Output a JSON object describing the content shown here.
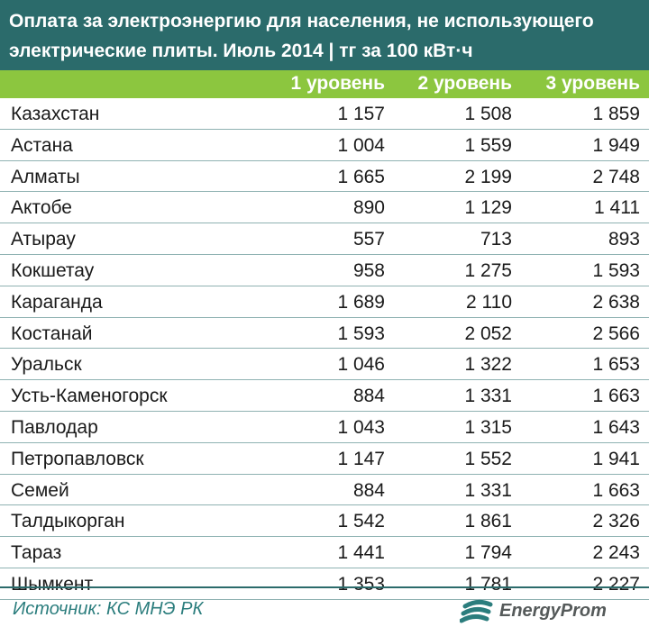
{
  "title": "Оплата за электроэнергию для населения, не использующего электрические плиты. Июль 2014 | тг за 100 кВт·ч",
  "columns": [
    "1 уровень",
    "2 уровень",
    "3 уровень"
  ],
  "rows": [
    {
      "city": "Казахстан",
      "v1": "1 157",
      "v2": "1 508",
      "v3": "1 859"
    },
    {
      "city": "Астана",
      "v1": "1 004",
      "v2": "1 559",
      "v3": "1 949"
    },
    {
      "city": "Алматы",
      "v1": "1 665",
      "v2": "2 199",
      "v3": "2 748"
    },
    {
      "city": "Актобе",
      "v1": "890",
      "v2": "1 129",
      "v3": "1 411"
    },
    {
      "city": "Атырау",
      "v1": "557",
      "v2": "713",
      "v3": "893"
    },
    {
      "city": "Кокшетау",
      "v1": "958",
      "v2": "1 275",
      "v3": "1 593"
    },
    {
      "city": "Караганда",
      "v1": "1 689",
      "v2": "2 110",
      "v3": "2 638"
    },
    {
      "city": "Костанай",
      "v1": "1 593",
      "v2": "2 052",
      "v3": "2 566"
    },
    {
      "city": "Уральск",
      "v1": "1 046",
      "v2": "1 322",
      "v3": "1 653"
    },
    {
      "city": "Усть-Каменогорск",
      "v1": "884",
      "v2": "1 331",
      "v3": "1 663"
    },
    {
      "city": "Павлодар",
      "v1": "1 043",
      "v2": "1 315",
      "v3": "1 643"
    },
    {
      "city": "Петропавловск",
      "v1": "1 147",
      "v2": "1 552",
      "v3": "1 941"
    },
    {
      "city": "Семей",
      "v1": "884",
      "v2": "1 331",
      "v3": "1 663"
    },
    {
      "city": "Талдыкорган",
      "v1": "1 542",
      "v2": "1 861",
      "v3": "2 326"
    },
    {
      "city": "Тараз",
      "v1": "1 441",
      "v2": "1 794",
      "v3": "2 243"
    },
    {
      "city": "Шымкент",
      "v1": "1 353",
      "v2": "1 781",
      "v3": "2 227"
    }
  ],
  "footer": {
    "source": "Источник: КС МНЭ РК",
    "logo_text": "EnergyProm",
    "logo_icon": "energy-wave-icon"
  },
  "colors": {
    "title_bg": "#2b6b6b",
    "header_bg": "#8cc63f",
    "source_text": "#2b7d7d"
  }
}
